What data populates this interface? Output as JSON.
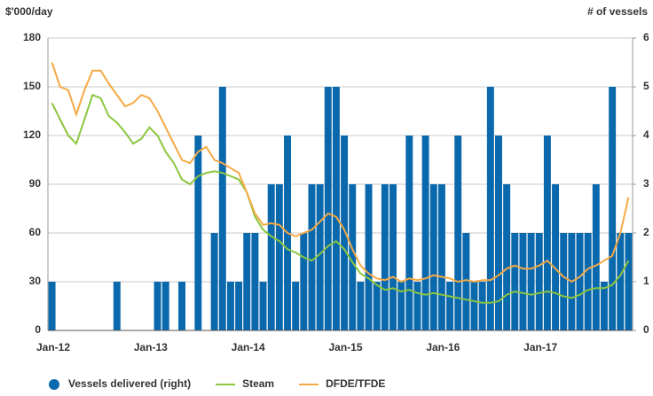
{
  "chart_data": {
    "type": "bar_line",
    "y_label": "$'000/day",
    "y2_label": "# of vessels",
    "categories": [
      "Jan-12",
      null,
      null,
      null,
      null,
      null,
      null,
      null,
      null,
      null,
      null,
      null,
      "Jan-13",
      null,
      null,
      null,
      null,
      null,
      null,
      null,
      null,
      null,
      null,
      null,
      "Jan-14",
      null,
      null,
      null,
      null,
      null,
      null,
      null,
      null,
      null,
      null,
      null,
      "Jan-15",
      null,
      null,
      null,
      null,
      null,
      null,
      null,
      null,
      null,
      null,
      null,
      "Jan-16",
      null,
      null,
      null,
      null,
      null,
      null,
      null,
      null,
      null,
      null,
      null,
      "Jan-17",
      null,
      null,
      null,
      null,
      null,
      null,
      null,
      null,
      null,
      null,
      null
    ],
    "series": [
      {
        "name": "Vessels delivered (right)",
        "color": "#0a68ad",
        "type": "bar",
        "axis": "y2",
        "values": [
          1,
          0,
          0,
          0,
          0,
          0,
          0,
          0,
          1,
          0,
          0,
          0,
          0,
          1,
          1,
          0,
          1,
          0,
          4,
          0,
          2,
          5,
          1,
          1,
          2,
          2,
          1,
          3,
          3,
          4,
          1,
          2,
          3,
          3,
          5,
          5,
          4,
          3,
          1,
          3,
          1,
          3,
          3,
          1,
          4,
          1,
          4,
          3,
          3,
          1,
          4,
          2,
          1,
          1,
          5,
          4,
          3,
          2,
          2,
          2,
          2,
          4,
          3,
          2,
          2,
          2,
          2,
          3,
          1,
          5,
          2,
          2
        ]
      },
      {
        "name": "Steam",
        "color": "#8cc63f",
        "type": "line",
        "values": [
          140,
          130,
          120,
          115,
          130,
          145,
          143,
          132,
          128,
          122,
          115,
          118,
          125,
          120,
          110,
          103,
          93,
          90,
          95,
          97,
          98,
          97,
          95,
          93,
          85,
          70,
          62,
          58,
          55,
          50,
          48,
          45,
          43,
          47,
          52,
          55,
          50,
          42,
          35,
          32,
          28,
          25,
          26,
          24,
          25,
          23,
          22,
          23,
          22,
          21,
          20,
          19,
          18,
          17,
          17,
          18,
          22,
          24,
          23,
          22,
          23,
          24,
          23,
          21,
          20,
          22,
          25,
          26,
          26,
          28,
          34,
          43
        ]
      },
      {
        "name": "DFDE/TFDE",
        "color": "#f5a944",
        "type": "line",
        "values": [
          165,
          150,
          148,
          133,
          148,
          160,
          160,
          152,
          145,
          138,
          140,
          145,
          143,
          135,
          125,
          115,
          105,
          103,
          110,
          113,
          105,
          103,
          100,
          97,
          85,
          72,
          65,
          66,
          65,
          60,
          58,
          60,
          62,
          67,
          72,
          70,
          62,
          50,
          40,
          35,
          32,
          31,
          33,
          30,
          32,
          31,
          32,
          34,
          33,
          32,
          30,
          31,
          30,
          31,
          31,
          34,
          38,
          40,
          38,
          38,
          40,
          43,
          38,
          33,
          30,
          33,
          38,
          40,
          43,
          46,
          60,
          82
        ]
      }
    ],
    "ylim": [
      0,
      180
    ],
    "yticks": [
      0,
      30,
      60,
      90,
      120,
      150,
      180
    ],
    "y2lim": [
      0,
      6
    ],
    "y2ticks": [
      0,
      1,
      2,
      3,
      4,
      5,
      6
    ],
    "grid": true
  }
}
